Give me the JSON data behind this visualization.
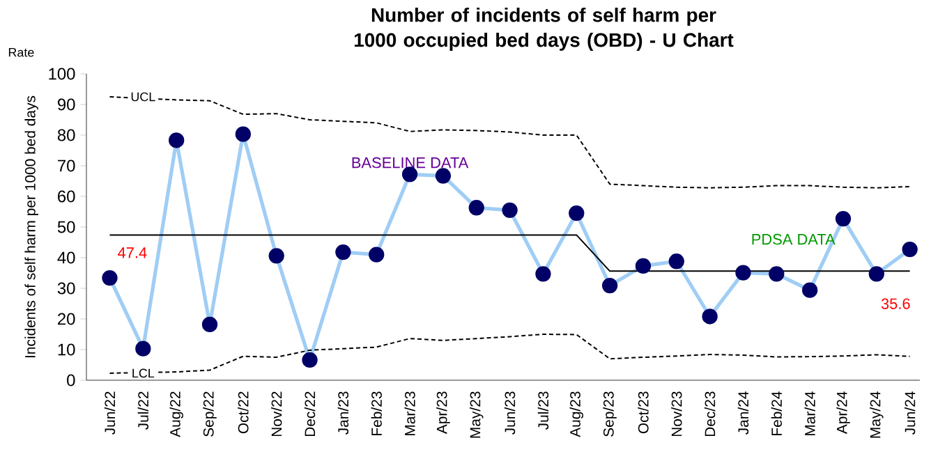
{
  "chart_data": {
    "type": "line",
    "title": "Number of incidents of self harm per 1000 occupied bed days (OBD) - U Chart",
    "ylabel": "Incidents of self harm per 1000 bed days",
    "categories": [
      "Jun/22",
      "Jul/22",
      "Aug/22",
      "Sep/22",
      "Oct/22",
      "Nov/22",
      "Dec/22",
      "Jan/23",
      "Feb/23",
      "Mar/23",
      "Apr/23",
      "May/23",
      "Jun/23",
      "Jul/23",
      "Aug/23",
      "Sep/23",
      "Oct/23",
      "Nov/23",
      "Dec/23",
      "Jan/24",
      "Feb/24",
      "Mar/24",
      "Apr/24",
      "May/24",
      "Jun/24"
    ],
    "series": [
      {
        "color": "#9fcdf5",
        "marker": "circle",
        "line_style": "solid",
        "values": [
          33.4,
          10.3,
          78.3,
          18.2,
          80.3,
          40.6,
          6.6,
          41.8,
          41.0,
          67.2,
          66.7,
          56.3,
          55.5,
          34.7,
          54.5,
          30.9,
          37.3,
          38.8,
          20.8,
          35.1,
          34.7,
          29.4,
          52.7,
          34.7,
          42.7
        ]
      },
      {
        "color": "#000000",
        "marker": "none",
        "line_style": "solid",
        "values": [
          47.4,
          47.4,
          47.4,
          47.4,
          47.4,
          47.4,
          47.4,
          47.4,
          47.4,
          47.4,
          47.4,
          47.4,
          47.4,
          47.4,
          47.4,
          35.6,
          35.6,
          35.6,
          35.6,
          35.6,
          35.6,
          35.6,
          35.6,
          35.6,
          35.6
        ]
      },
      {
        "color": "#000000",
        "marker": "none",
        "line_style": "dashed",
        "values": [
          92.5,
          null,
          91.5,
          91.2,
          86.8,
          87.0,
          85.0,
          84.5,
          84.0,
          81.2,
          81.7,
          81.5,
          81.0,
          80.0,
          80.0,
          64.0,
          63.5,
          63.0,
          62.8,
          63.0,
          63.5,
          63.5,
          63.0,
          62.8,
          63.2
        ]
      },
      {
        "color": "#000000",
        "marker": "none",
        "line_style": "dashed",
        "values": [
          2.3,
          null,
          2.7,
          3.3,
          7.8,
          7.5,
          9.8,
          10.3,
          10.8,
          13.6,
          13.0,
          13.6,
          14.2,
          15.0,
          14.9,
          7.0,
          7.5,
          7.9,
          8.4,
          8.2,
          7.6,
          7.7,
          7.9,
          8.3,
          7.8
        ]
      }
    ],
    "ylim": [
      0,
      100
    ],
    "yticks": [
      0,
      10,
      20,
      30,
      40,
      50,
      60,
      70,
      80,
      90,
      100
    ],
    "grid": false,
    "annotations": [
      {
        "text": "47.4",
        "x": "Jun/22",
        "y": 47.4
      },
      {
        "text": "35.6",
        "x": "Jun/24",
        "y": 35.6
      },
      {
        "text": "UCL",
        "x": "Jul/22",
        "y": 92.5
      },
      {
        "text": "LCL",
        "x": "Jul/22",
        "y": 2.3
      },
      "BASELINE DATA",
      "PDSA DATA",
      "Rate"
    ]
  }
}
